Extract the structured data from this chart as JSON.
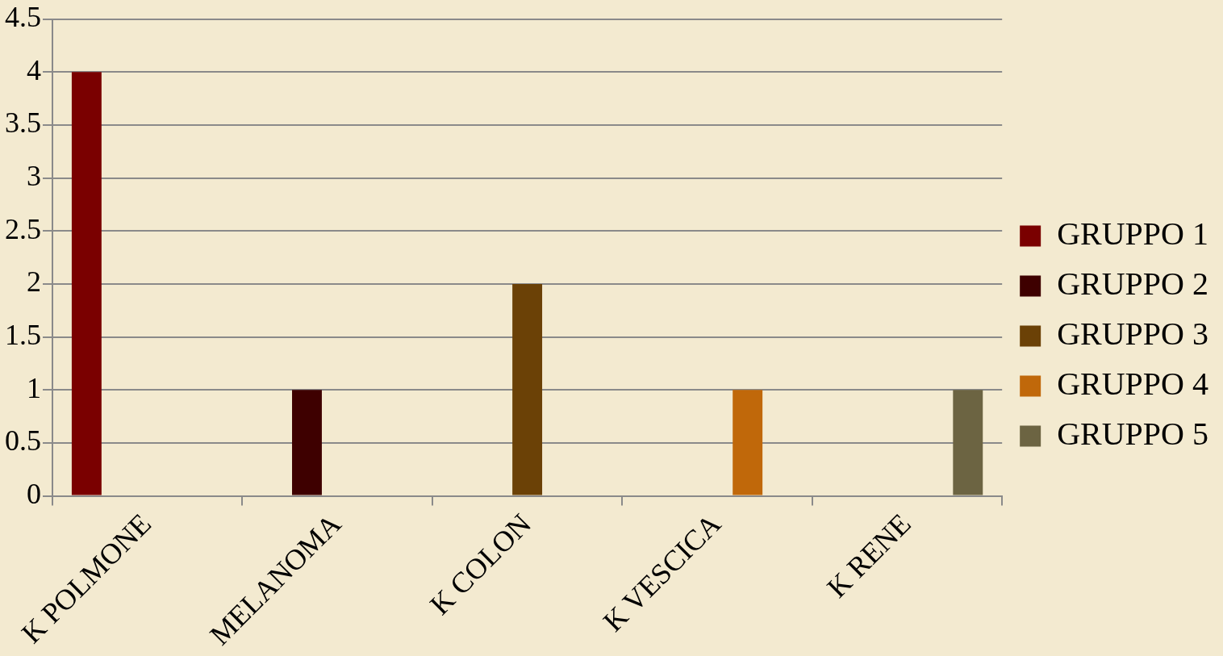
{
  "chart_data": {
    "type": "bar",
    "categories": [
      "K POLMONE",
      "MELANOMA",
      "K COLON",
      "K VESCICA",
      "K RENE"
    ],
    "series": [
      {
        "name": "GRUPPO 1",
        "color": "#7a0000",
        "values": [
          4,
          null,
          null,
          null,
          null
        ]
      },
      {
        "name": "GRUPPO 2",
        "color": "#3e0000",
        "values": [
          null,
          1,
          null,
          null,
          null
        ]
      },
      {
        "name": "GRUPPO 3",
        "color": "#6b4106",
        "values": [
          null,
          null,
          2,
          null,
          null
        ]
      },
      {
        "name": "GRUPPO 4",
        "color": "#c0680a",
        "values": [
          null,
          null,
          null,
          1,
          null
        ]
      },
      {
        "name": "GRUPPO 5",
        "color": "#6c6442",
        "values": [
          null,
          null,
          null,
          null,
          1
        ]
      }
    ],
    "ylim": [
      0,
      4.5
    ],
    "yticks": [
      0,
      0.5,
      1,
      1.5,
      2,
      2.5,
      3,
      3.5,
      4,
      4.5
    ],
    "grid": "y",
    "legend": "right"
  }
}
